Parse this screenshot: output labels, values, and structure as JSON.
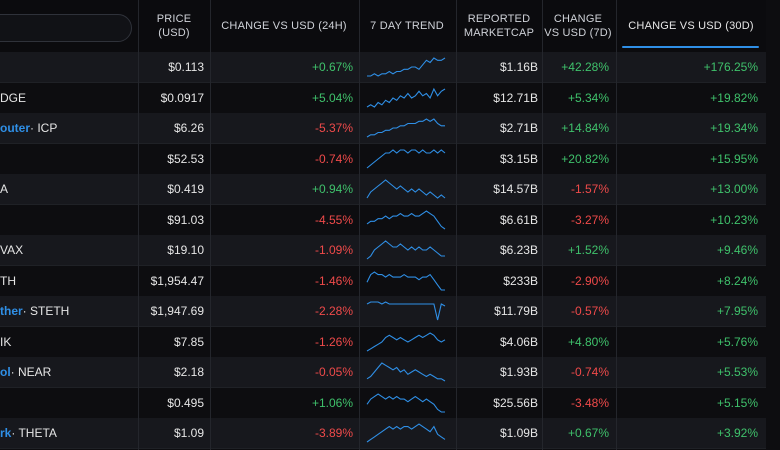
{
  "header": {
    "price": "PRICE\n(USD)",
    "change_24h": "CHANGE VS USD (24H)",
    "trend_7d": "7 DAY TREND",
    "marketcap": "REPORTED\nMARKETCAP",
    "change_7d": "CHANGE\nVS USD (7D)",
    "change_30d": "CHANGE VS USD (30D)"
  },
  "colors": {
    "positive": "#3fc16b",
    "negative": "#ef4a4a",
    "accent": "#2f8fe6"
  },
  "rows": [
    {
      "prefix": "",
      "name": "",
      "price": "$0.113",
      "ch24": "+0.67%",
      "mcap": "$1.16B",
      "ch7": "+42.28%",
      "ch30": "+176.25%",
      "trend": [
        2,
        2,
        3,
        2,
        3,
        3,
        4,
        3,
        4,
        4,
        5,
        5,
        6,
        6,
        5,
        7,
        9,
        8,
        10,
        9,
        9,
        10
      ]
    },
    {
      "prefix": "",
      "name": "DGE",
      "price": "$0.0917",
      "ch24": "+5.04%",
      "mcap": "$12.71B",
      "ch7": "+5.34%",
      "ch30": "+19.82%",
      "trend": [
        2,
        3,
        2,
        4,
        3,
        5,
        4,
        6,
        5,
        7,
        6,
        8,
        6,
        7,
        9,
        7,
        8,
        6,
        10,
        7,
        9,
        10
      ]
    },
    {
      "prefix": "outer",
      "name": " · ICP",
      "price": "$6.26",
      "ch24": "-5.37%",
      "mcap": "$2.71B",
      "ch7": "+14.84%",
      "ch30": "+19.34%",
      "trend": [
        2,
        3,
        3,
        4,
        4,
        5,
        5,
        6,
        6,
        7,
        7,
        8,
        8,
        8,
        9,
        9,
        10,
        9,
        10,
        8,
        7,
        7
      ]
    },
    {
      "prefix": "",
      "name": "",
      "price": "$52.53",
      "ch24": "-0.74%",
      "mcap": "$3.15B",
      "ch7": "+20.82%",
      "ch30": "+15.95%",
      "trend": [
        3,
        4,
        5,
        6,
        7,
        8,
        8,
        9,
        8,
        9,
        9,
        8,
        9,
        9,
        8,
        9,
        8,
        8,
        9,
        8,
        9,
        8
      ]
    },
    {
      "prefix": "",
      "name": "A",
      "price": "$0.419",
      "ch24": "+0.94%",
      "mcap": "$14.57B",
      "ch7": "-1.57%",
      "ch30": "+13.00%",
      "trend": [
        4,
        6,
        7,
        8,
        9,
        10,
        9,
        8,
        7,
        8,
        7,
        6,
        7,
        6,
        7,
        6,
        5,
        6,
        5,
        4,
        5,
        4
      ]
    },
    {
      "prefix": "",
      "name": "",
      "price": "$91.03",
      "ch24": "-4.55%",
      "mcap": "$6.61B",
      "ch7": "-3.27%",
      "ch30": "+10.23%",
      "trend": [
        5,
        6,
        6,
        7,
        7,
        8,
        7,
        8,
        8,
        9,
        8,
        8,
        9,
        8,
        8,
        9,
        10,
        9,
        8,
        6,
        4,
        3
      ]
    },
    {
      "prefix": "",
      "name": "VAX",
      "price": "$19.10",
      "ch24": "-1.09%",
      "mcap": "$6.23B",
      "ch7": "+1.52%",
      "ch30": "+9.46%",
      "trend": [
        4,
        5,
        7,
        8,
        9,
        10,
        9,
        8,
        8,
        9,
        8,
        7,
        8,
        7,
        8,
        7,
        7,
        8,
        7,
        6,
        5,
        5
      ]
    },
    {
      "prefix": "",
      "name": "TH",
      "price": "$1,954.47",
      "ch24": "-1.46%",
      "mcap": "$233B",
      "ch7": "-2.90%",
      "ch30": "+8.24%",
      "trend": [
        6,
        9,
        10,
        9,
        9,
        8,
        9,
        8,
        8,
        8,
        9,
        8,
        8,
        8,
        7,
        8,
        8,
        9,
        7,
        5,
        3,
        3
      ]
    },
    {
      "prefix": "ther",
      "name": " · STETH",
      "price": "$1,947.69",
      "ch24": "-2.28%",
      "mcap": "$11.79B",
      "ch7": "-0.57%",
      "ch30": "+7.95%",
      "trend": [
        8,
        9,
        9,
        9,
        8,
        9,
        8,
        8,
        8,
        8,
        8,
        8,
        8,
        8,
        8,
        8,
        8,
        8,
        8,
        0,
        8,
        7
      ]
    },
    {
      "prefix": "",
      "name": "IK",
      "price": "$7.85",
      "ch24": "-1.26%",
      "mcap": "$4.06B",
      "ch7": "+4.80%",
      "ch30": "+5.76%",
      "trend": [
        2,
        3,
        4,
        5,
        6,
        8,
        9,
        8,
        7,
        8,
        7,
        6,
        7,
        8,
        9,
        8,
        9,
        10,
        9,
        7,
        6,
        7
      ]
    },
    {
      "prefix": "ol",
      "name": " · NEAR",
      "price": "$2.18",
      "ch24": "-0.05%",
      "mcap": "$1.93B",
      "ch7": "-0.74%",
      "ch30": "+5.53%",
      "trend": [
        3,
        4,
        6,
        8,
        10,
        9,
        8,
        7,
        8,
        6,
        7,
        5,
        6,
        7,
        6,
        5,
        4,
        5,
        4,
        3,
        3,
        2
      ]
    },
    {
      "prefix": "",
      "name": "",
      "price": "$0.495",
      "ch24": "+1.06%",
      "mcap": "$25.56B",
      "ch7": "-3.48%",
      "ch30": "+5.15%",
      "trend": [
        6,
        8,
        9,
        10,
        9,
        8,
        9,
        8,
        9,
        8,
        8,
        7,
        8,
        9,
        8,
        7,
        8,
        7,
        6,
        4,
        3,
        3
      ]
    },
    {
      "prefix": "rk",
      "name": " · THETA",
      "price": "$1.09",
      "ch24": "-3.89%",
      "mcap": "$1.09B",
      "ch7": "+0.67%",
      "ch30": "+3.92%",
      "trend": [
        3,
        4,
        5,
        6,
        7,
        8,
        9,
        8,
        9,
        8,
        9,
        9,
        8,
        9,
        10,
        9,
        8,
        7,
        9,
        6,
        5,
        4
      ]
    }
  ]
}
